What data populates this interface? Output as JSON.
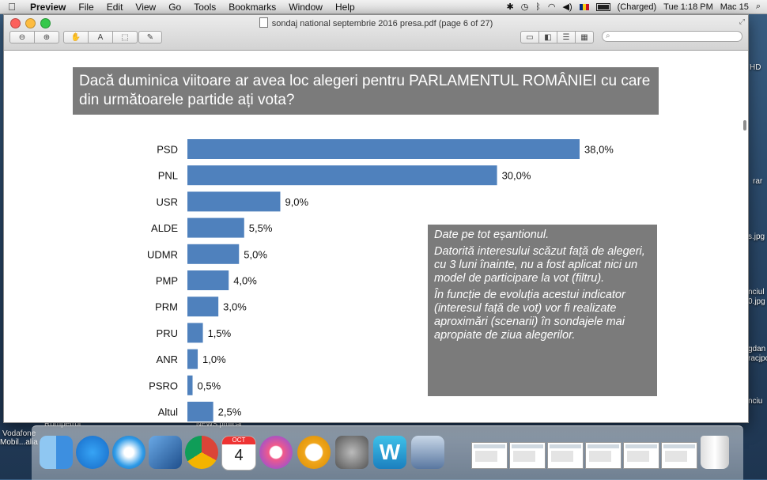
{
  "menubar": {
    "app": "Preview",
    "items": [
      "File",
      "Edit",
      "View",
      "Go",
      "Tools",
      "Bookmarks",
      "Window",
      "Help"
    ],
    "battery_status": "(Charged)",
    "clock": "Tue 1:18 PM",
    "user": "Mac 15"
  },
  "window": {
    "title": "sondaj national septembrie 2016 presa.pdf (page 6 of 27)",
    "search_placeholder": ""
  },
  "slide": {
    "question": "Dacă duminica viitoare ar avea loc alegeri pentru PARLAMENTUL ROMÂNIEI cu care din următoarele partide ați vota?",
    "notes": [
      "Date pe tot eșantionul.",
      "Datorită interesului scăzut față de alegeri, cu 3 luni înainte, nu a fost aplicat nici un model de participare la vot (filtru).",
      "În funcție de evoluția acestui indicator (interesul față de vot) vor fi realizate aproximări (scenarii) în sondajele mai apropiate de ziua alegerilor."
    ]
  },
  "chart_data": {
    "type": "bar",
    "orientation": "horizontal",
    "categories": [
      "PSD",
      "PNL",
      "USR",
      "ALDE",
      "UDMR",
      "PMP",
      "PRM",
      "PRU",
      "ANR",
      "PSRO",
      "Altul"
    ],
    "values": [
      38.0,
      30.0,
      9.0,
      5.5,
      5.0,
      4.0,
      3.0,
      1.5,
      1.0,
      0.5,
      2.5
    ],
    "value_labels": [
      "38,0%",
      "30,0%",
      "9,0%",
      "5,5%",
      "5,0%",
      "4,0%",
      "3,0%",
      "1,5%",
      "1,0%",
      "0,5%",
      "2,5%"
    ],
    "title": "",
    "xlabel": "",
    "ylabel": "",
    "xlim": [
      0,
      38
    ],
    "bar_color": "#4f81bd"
  },
  "desktop": {
    "left_labels": [
      "Rompetrol",
      "Vodafone",
      "Mobil...alia"
    ],
    "bottom_label": "NEWS pmiical",
    "right_labels": [
      "HD",
      "rar",
      "s.jpg",
      "nciul",
      "0.jpg",
      "gdan",
      "racjpc",
      "nciu"
    ]
  },
  "dock": {
    "apps": [
      "Finder",
      "App Store",
      "Safari",
      "Mail",
      "Chrome",
      "Calendar",
      "iTunes",
      "Outlook",
      "System Preferences",
      "Word",
      "Photo Booth"
    ],
    "calendar_month": "OCT",
    "calendar_day": "4",
    "trash": "Trash"
  }
}
